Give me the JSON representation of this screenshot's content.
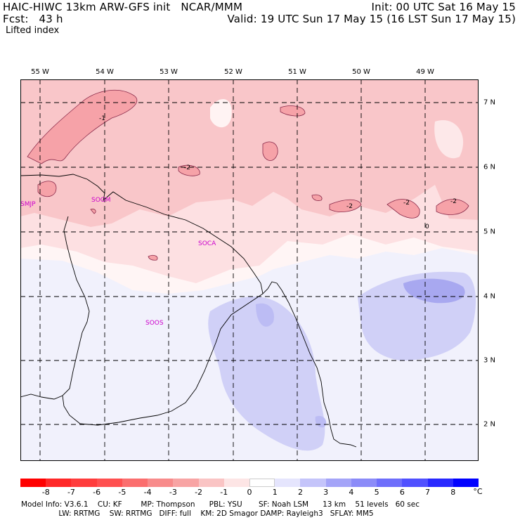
{
  "header": {
    "line1_left": "HAIC-HIWC 13km ARW-GFS init   NCAR/MMM",
    "line1_right": "Init: 00 UTC Sat 16 May 15",
    "line2_left": "Fcst:   43 h",
    "line2_right": "Valid: 19 UTC Sun 17 May 15 (16 LST Sun 17 May 15)",
    "field": "Lifted index"
  },
  "map": {
    "lon_labels": [
      "55 W",
      "54 W",
      "53 W",
      "52 W",
      "51 W",
      "50 W",
      "49 W"
    ],
    "lat_labels": [
      "7 N",
      "6 N",
      "5 N",
      "4 N",
      "3 N",
      "2 N"
    ],
    "stations": [
      "SMJP",
      "SOGM",
      "SOCA",
      "SOOS"
    ],
    "contour_labels": [
      "-1",
      "-2",
      "-2",
      "-2",
      "-2",
      "0"
    ],
    "colors": {
      "neg_strong": "#f6a0a6",
      "neg_mid": "#f9c4c8",
      "neg_light": "#fde5e6",
      "pos_light": "#e8e8fb",
      "pos_mid": "#c9c9f5",
      "pos_strong": "#9f9fee",
      "station": "#cc00cc"
    }
  },
  "colorbar": {
    "labels": [
      "-8",
      "-7",
      "-6",
      "-5",
      "-4",
      "-3",
      "-2",
      "-1",
      "0",
      "1",
      "2",
      "3",
      "4",
      "5",
      "6",
      "7",
      "8"
    ],
    "unit": "°C",
    "colors": [
      "#ff0000",
      "#ff2828",
      "#ff3c3c",
      "#ff5050",
      "#fb6e6e",
      "#f88b8b",
      "#f8a4a4",
      "#fac4c4",
      "#fde5e5",
      "#ffffff",
      "#e5e5fd",
      "#c4c4fa",
      "#a4a4f8",
      "#8b8bf8",
      "#6e6efb",
      "#5050ff",
      "#2828ff",
      "#0000ff"
    ]
  },
  "footer": {
    "line1": "Model Info: V3.6.1    CU: KF        MP: Thompson      PBL: YSU       SF: Noah LSM      13 km    51 levels   60 sec",
    "line2": "                LW: RRTMG    SW: RRTMG   DIFF: full    KM: 2D Smagor DAMP: Rayleigh3   SFLAY: MM5"
  }
}
